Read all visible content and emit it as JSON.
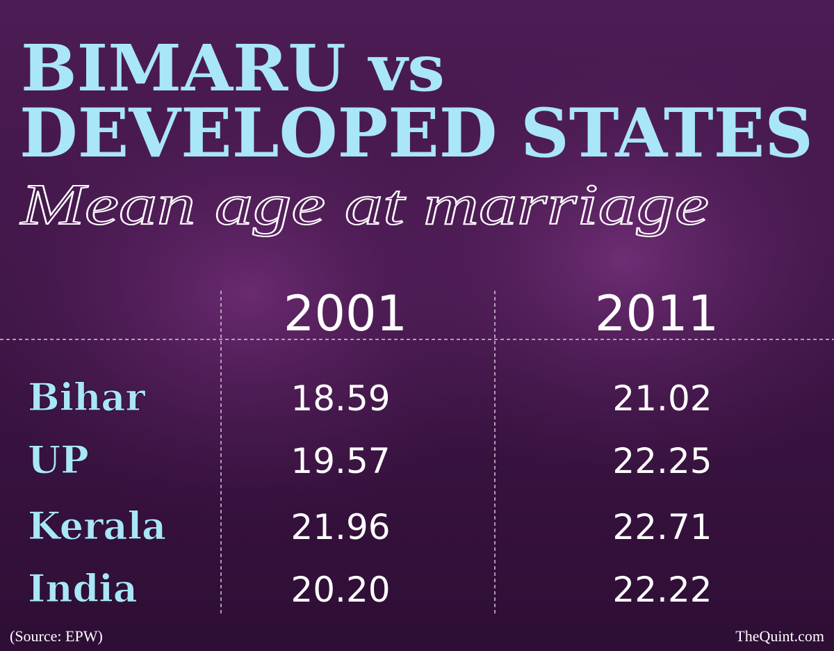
{
  "header": {
    "title_lines": [
      "BIMARU vs",
      "DEVELOPED STATES"
    ],
    "subtitle": "Mean age at marriage"
  },
  "table": {
    "columns": [
      "2001",
      "2011"
    ],
    "rows": [
      [
        "Bihar",
        "18.59",
        "21.02"
      ],
      [
        "UP",
        "19.57",
        "22.25"
      ],
      [
        "Kerala",
        "21.96",
        "22.71"
      ],
      [
        "India",
        "20.20",
        "22.22"
      ]
    ]
  },
  "footer": {
    "source": "(Source: EPW)",
    "brand": "TheQuint.com"
  }
}
